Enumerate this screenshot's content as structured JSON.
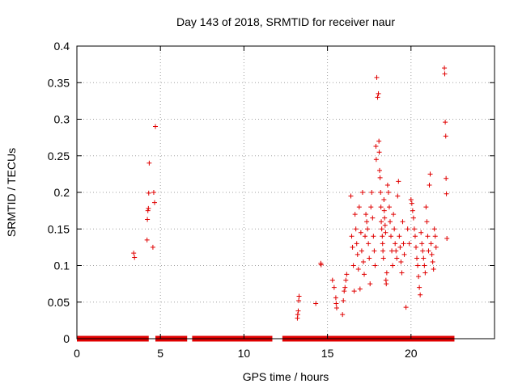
{
  "chart_data": {
    "type": "scatter",
    "title": "Day 143 of 2018, SRMTID for receiver naur",
    "xlabel": "GPS time / hours",
    "ylabel": "SRMTID / TECUs",
    "xlim": [
      0,
      25
    ],
    "ylim": [
      0,
      0.4
    ],
    "grid": true,
    "marker": "+",
    "color": "#e00000",
    "x_ticks": [
      {
        "value": 0,
        "label": "0"
      },
      {
        "value": 5,
        "label": "5"
      },
      {
        "value": 10,
        "label": "10"
      },
      {
        "value": 15,
        "label": "15"
      },
      {
        "value": 20,
        "label": "20"
      }
    ],
    "y_ticks": [
      {
        "value": 0,
        "label": "0"
      },
      {
        "value": 0.05,
        "label": "0.05"
      },
      {
        "value": 0.1,
        "label": "0.1"
      },
      {
        "value": 0.15,
        "label": "0.15"
      },
      {
        "value": 0.2,
        "label": "0.2"
      },
      {
        "value": 0.25,
        "label": "0.25"
      },
      {
        "value": 0.3,
        "label": "0.3"
      },
      {
        "value": 0.35,
        "label": "0.35"
      },
      {
        "value": 0.4,
        "label": "0.4"
      }
    ],
    "zero_baseline_ranges": [
      [
        0.0,
        4.3
      ],
      [
        4.7,
        6.6
      ],
      [
        6.9,
        11.7
      ],
      [
        12.3,
        22.6
      ]
    ],
    "points": [
      [
        3.4,
        0.117
      ],
      [
        3.45,
        0.111
      ],
      [
        4.2,
        0.135
      ],
      [
        4.22,
        0.163
      ],
      [
        4.25,
        0.175
      ],
      [
        4.28,
        0.178
      ],
      [
        4.3,
        0.199
      ],
      [
        4.33,
        0.24
      ],
      [
        4.55,
        0.125
      ],
      [
        4.6,
        0.2
      ],
      [
        4.65,
        0.186
      ],
      [
        4.7,
        0.29
      ],
      [
        13.2,
        0.028
      ],
      [
        13.22,
        0.033
      ],
      [
        13.25,
        0.038
      ],
      [
        13.28,
        0.052
      ],
      [
        13.3,
        0.058
      ],
      [
        14.3,
        0.048
      ],
      [
        14.6,
        0.103
      ],
      [
        14.62,
        0.101
      ],
      [
        15.3,
        0.08
      ],
      [
        15.4,
        0.07
      ],
      [
        15.5,
        0.056
      ],
      [
        15.52,
        0.048
      ],
      [
        15.55,
        0.042
      ],
      [
        15.9,
        0.033
      ],
      [
        15.95,
        0.052
      ],
      [
        16.0,
        0.065
      ],
      [
        16.05,
        0.07
      ],
      [
        16.1,
        0.08
      ],
      [
        16.15,
        0.088
      ],
      [
        16.4,
        0.195
      ],
      [
        16.45,
        0.14
      ],
      [
        16.5,
        0.125
      ],
      [
        16.55,
        0.1
      ],
      [
        16.6,
        0.065
      ],
      [
        16.65,
        0.17
      ],
      [
        16.7,
        0.15
      ],
      [
        16.75,
        0.13
      ],
      [
        16.8,
        0.115
      ],
      [
        16.85,
        0.095
      ],
      [
        16.9,
        0.18
      ],
      [
        16.95,
        0.068
      ],
      [
        17.0,
        0.145
      ],
      [
        17.05,
        0.12
      ],
      [
        17.1,
        0.2
      ],
      [
        17.15,
        0.105
      ],
      [
        17.2,
        0.088
      ],
      [
        17.25,
        0.14
      ],
      [
        17.3,
        0.17
      ],
      [
        17.35,
        0.16
      ],
      [
        17.4,
        0.15
      ],
      [
        17.45,
        0.13
      ],
      [
        17.5,
        0.11
      ],
      [
        17.55,
        0.075
      ],
      [
        17.6,
        0.18
      ],
      [
        17.65,
        0.2
      ],
      [
        17.7,
        0.165
      ],
      [
        17.75,
        0.14
      ],
      [
        17.8,
        0.12
      ],
      [
        17.85,
        0.1
      ],
      [
        17.9,
        0.263
      ],
      [
        17.92,
        0.245
      ],
      [
        17.95,
        0.357
      ],
      [
        18.0,
        0.33
      ],
      [
        18.05,
        0.335
      ],
      [
        18.08,
        0.27
      ],
      [
        18.1,
        0.255
      ],
      [
        18.12,
        0.23
      ],
      [
        18.15,
        0.22
      ],
      [
        18.18,
        0.2
      ],
      [
        18.2,
        0.18
      ],
      [
        18.22,
        0.16
      ],
      [
        18.25,
        0.15
      ],
      [
        18.28,
        0.14
      ],
      [
        18.3,
        0.13
      ],
      [
        18.32,
        0.12
      ],
      [
        18.35,
        0.11
      ],
      [
        18.38,
        0.19
      ],
      [
        18.4,
        0.175
      ],
      [
        18.42,
        0.165
      ],
      [
        18.45,
        0.155
      ],
      [
        18.48,
        0.145
      ],
      [
        18.5,
        0.08
      ],
      [
        18.52,
        0.075
      ],
      [
        18.55,
        0.09
      ],
      [
        18.6,
        0.21
      ],
      [
        18.65,
        0.2
      ],
      [
        18.7,
        0.18
      ],
      [
        18.75,
        0.16
      ],
      [
        18.8,
        0.14
      ],
      [
        18.85,
        0.12
      ],
      [
        18.9,
        0.1
      ],
      [
        18.95,
        0.17
      ],
      [
        19.0,
        0.15
      ],
      [
        19.05,
        0.13
      ],
      [
        19.1,
        0.12
      ],
      [
        19.15,
        0.11
      ],
      [
        19.2,
        0.195
      ],
      [
        19.25,
        0.215
      ],
      [
        19.3,
        0.14
      ],
      [
        19.35,
        0.125
      ],
      [
        19.4,
        0.105
      ],
      [
        19.45,
        0.09
      ],
      [
        19.5,
        0.16
      ],
      [
        19.55,
        0.13
      ],
      [
        19.6,
        0.115
      ],
      [
        19.7,
        0.043
      ],
      [
        19.8,
        0.15
      ],
      [
        19.9,
        0.13
      ],
      [
        20.0,
        0.19
      ],
      [
        20.05,
        0.185
      ],
      [
        20.1,
        0.175
      ],
      [
        20.15,
        0.165
      ],
      [
        20.2,
        0.15
      ],
      [
        20.25,
        0.14
      ],
      [
        20.3,
        0.125
      ],
      [
        20.35,
        0.11
      ],
      [
        20.4,
        0.1
      ],
      [
        20.45,
        0.085
      ],
      [
        20.5,
        0.07
      ],
      [
        20.55,
        0.06
      ],
      [
        20.6,
        0.145
      ],
      [
        20.65,
        0.13
      ],
      [
        20.7,
        0.12
      ],
      [
        20.75,
        0.11
      ],
      [
        20.8,
        0.1
      ],
      [
        20.85,
        0.09
      ],
      [
        20.9,
        0.18
      ],
      [
        20.95,
        0.16
      ],
      [
        21.0,
        0.14
      ],
      [
        21.05,
        0.12
      ],
      [
        21.1,
        0.21
      ],
      [
        21.15,
        0.225
      ],
      [
        21.2,
        0.13
      ],
      [
        21.25,
        0.115
      ],
      [
        21.3,
        0.105
      ],
      [
        21.35,
        0.095
      ],
      [
        21.4,
        0.15
      ],
      [
        21.45,
        0.14
      ],
      [
        21.5,
        0.125
      ],
      [
        22.0,
        0.37
      ],
      [
        22.02,
        0.362
      ],
      [
        22.05,
        0.296
      ],
      [
        22.08,
        0.277
      ],
      [
        22.1,
        0.219
      ],
      [
        22.12,
        0.198
      ],
      [
        22.15,
        0.137
      ]
    ]
  }
}
